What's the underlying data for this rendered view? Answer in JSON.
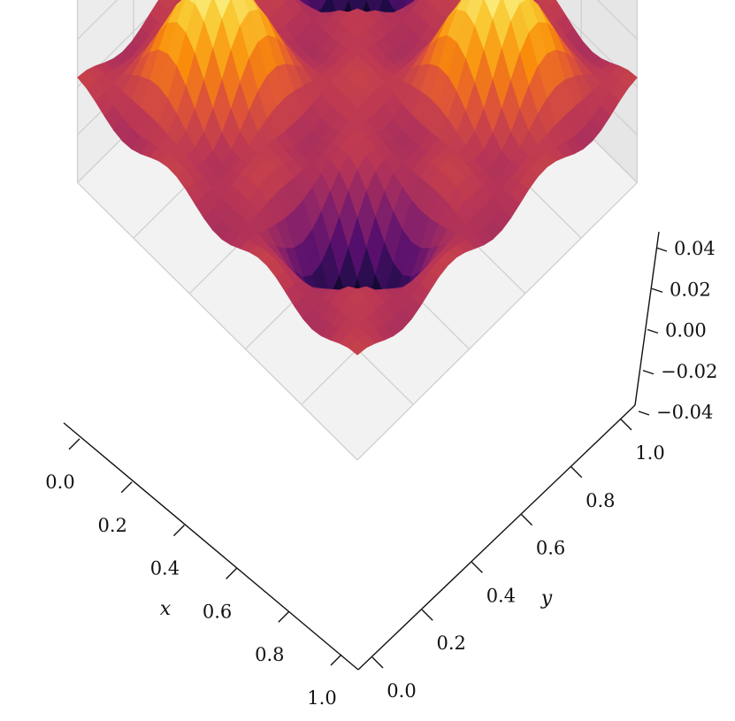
{
  "chart_data": {
    "type": "surface3d",
    "title": "",
    "xlabel": "x",
    "ylabel": "y",
    "zlabel": "",
    "xlim": [
      0.0,
      1.0
    ],
    "ylim": [
      0.0,
      1.0
    ],
    "zlim": [
      -0.04,
      0.04
    ],
    "x_ticks": [
      "0.0",
      "0.2",
      "0.4",
      "0.6",
      "0.8",
      "1.0"
    ],
    "y_ticks": [
      "0.0",
      "0.2",
      "0.4",
      "0.6",
      "0.8",
      "1.0"
    ],
    "z_ticks": [
      "−0.04",
      "−0.02",
      "0.00",
      "0.02",
      "0.04"
    ],
    "colormap": "inferno",
    "grid": true,
    "surface": {
      "function": "z = 0.04 * sin(2*pi*x)^2 * sin(2*pi*y)^2 * cos(2*pi*(x+y)) style ripple",
      "resolution": 31
    }
  }
}
